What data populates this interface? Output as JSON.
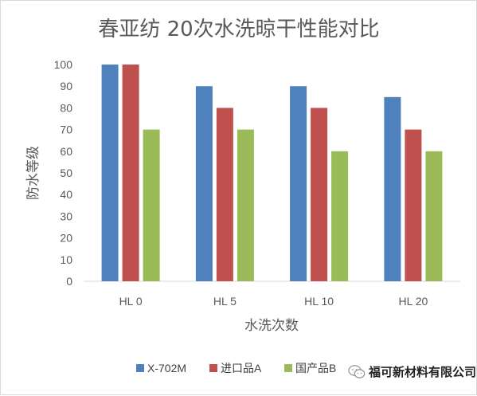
{
  "chart_data": {
    "type": "bar",
    "title": "春亚纺  20次水洗晾干性能对比",
    "xlabel": "水洗次数",
    "ylabel": "防水等级",
    "categories": [
      "HL 0",
      "HL 5",
      "HL 10",
      "HL 20"
    ],
    "ylim": [
      0,
      100
    ],
    "yticks": [
      0,
      10,
      20,
      30,
      40,
      50,
      60,
      70,
      80,
      90,
      100
    ],
    "grid": false,
    "legend_position": "bottom",
    "series": [
      {
        "name": "X-702M",
        "color": "#4f81bd",
        "values": [
          100,
          90,
          90,
          85
        ]
      },
      {
        "name": "进口品A",
        "color": "#c0504d",
        "values": [
          100,
          80,
          80,
          70
        ]
      },
      {
        "name": "国产品B",
        "color": "#9bbb59",
        "values": [
          70,
          70,
          60,
          60
        ]
      }
    ]
  },
  "watermark": {
    "text": "福可新材料有限公司",
    "icon": "wechat-icon"
  }
}
